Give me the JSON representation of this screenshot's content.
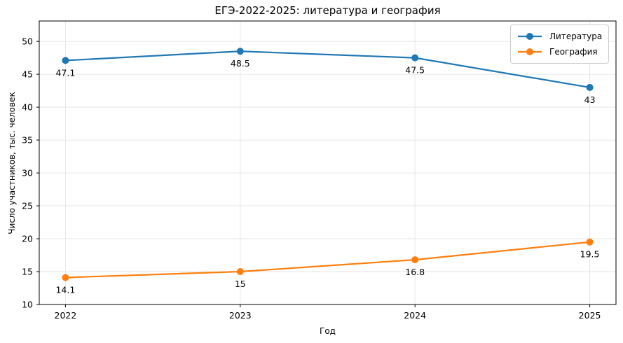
{
  "chart_data": {
    "type": "line",
    "title": "ЕГЭ-2022-2025: литература и география",
    "xlabel": "Год",
    "ylabel": "Число участников, тыс. человек",
    "x": [
      2022,
      2023,
      2024,
      2025
    ],
    "x_tick_labels": [
      "2022",
      "2023",
      "2024",
      "2025"
    ],
    "yticks": [
      10,
      15,
      20,
      25,
      30,
      35,
      40,
      45,
      50
    ],
    "ylim": [
      10,
      53.1
    ],
    "xlim": [
      2021.85,
      2025.15
    ],
    "grid": true,
    "grid_color": "#e6e6e6",
    "spine_color": "#000000",
    "legend_position": "upper right",
    "marker": "o",
    "series": [
      {
        "name": "Литература",
        "color": "#1f77b4",
        "values": [
          47.1,
          48.5,
          47.5,
          43
        ],
        "point_labels": [
          "47.1",
          "48.5",
          "47.5",
          "43"
        ]
      },
      {
        "name": "География",
        "color": "#ff7f0e",
        "values": [
          14.1,
          15,
          16.8,
          19.5
        ],
        "point_labels": [
          "14.1",
          "15",
          "16.8",
          "19.5"
        ]
      }
    ]
  }
}
